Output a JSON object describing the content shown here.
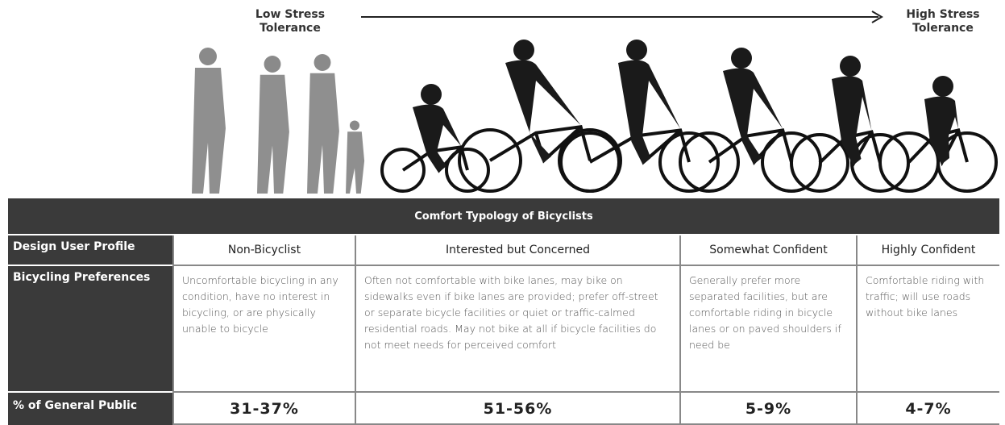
{
  "scale": {
    "low": "Low Stress Tolerance",
    "high": "High Stress Tolerance"
  },
  "table": {
    "title": "Comfort Typology of Bicyclists",
    "row_labels": [
      "Design User Profile",
      "Bicycling Preferences",
      "% of General Public"
    ],
    "columns": [
      {
        "profile": "Non-Bicyclist",
        "preferences": "Uncomfortable bicycling in any condition, have no interest in bicycling, or are physically unable to bicycle",
        "share": "31-37%"
      },
      {
        "profile": "Interested but Concerned",
        "preferences": "Often not comfortable with bike lanes, may bike on sidewalks even if bike lanes are provided; prefer off-street or separate bicycle facilities or quiet or traffic-calmed residential roads. May not bike at all if bicycle facilities do not meet needs for perceived comfort",
        "share": "51-56%"
      },
      {
        "profile": "Somewhat Confident",
        "preferences": "Generally prefer more separated facilities, but are comfortable riding in bicycle lanes or on paved shoulders if need be",
        "share": "5-9%"
      },
      {
        "profile": "Highly Confident",
        "preferences": "Comfortable riding with traffic; will use roads without bike lanes",
        "share": "4-7%"
      }
    ]
  }
}
